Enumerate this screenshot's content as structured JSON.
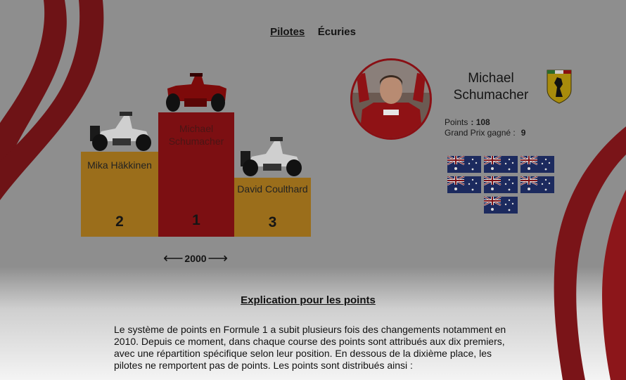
{
  "nav": {
    "items": [
      {
        "label": "Pilotes",
        "active": true
      },
      {
        "label": "Écuries",
        "active": false
      }
    ]
  },
  "podium": {
    "first": {
      "rank": "1",
      "name": "Michael Schumacher",
      "car": "red-f1-car"
    },
    "second": {
      "rank": "2",
      "name": "Mika Häkkinen",
      "car": "silver-f1-car"
    },
    "third": {
      "rank": "3",
      "name": "David Coulthard",
      "car": "silver-f1-car"
    }
  },
  "year_selector": {
    "year": "2000",
    "prev_icon": "arrow-left-icon",
    "next_icon": "arrow-right-icon"
  },
  "driver": {
    "name": "Michael Schumacher",
    "photo": "driver-photo",
    "team_logo": "ferrari-logo",
    "points_label": "Points",
    "points_value": ": 108",
    "gp_label": "Grand Prix gagné :",
    "gp_value": "9",
    "win_flags": [
      "australia-flag",
      "australia-flag",
      "australia-flag",
      "australia-flag",
      "australia-flag",
      "australia-flag",
      "australia-flag"
    ]
  },
  "explanation": {
    "title": "Explication pour les points",
    "text": "Le système de points en Formule 1 a subit plusieurs fois des changements notamment en 2010. Depuis ce moment, dans chaque course des points sont attribués aux dix premiers, avec une répartition spécifique selon leur position. En dessous de la dixième place, les pilotes ne remportent pas de points. Les points sont distribués ainsi :"
  },
  "colors": {
    "accent_red": "#b3191c",
    "podium_gold": "#9b6e1b",
    "podium_red": "#7c0f12",
    "overlay": "#8e8e8e"
  }
}
